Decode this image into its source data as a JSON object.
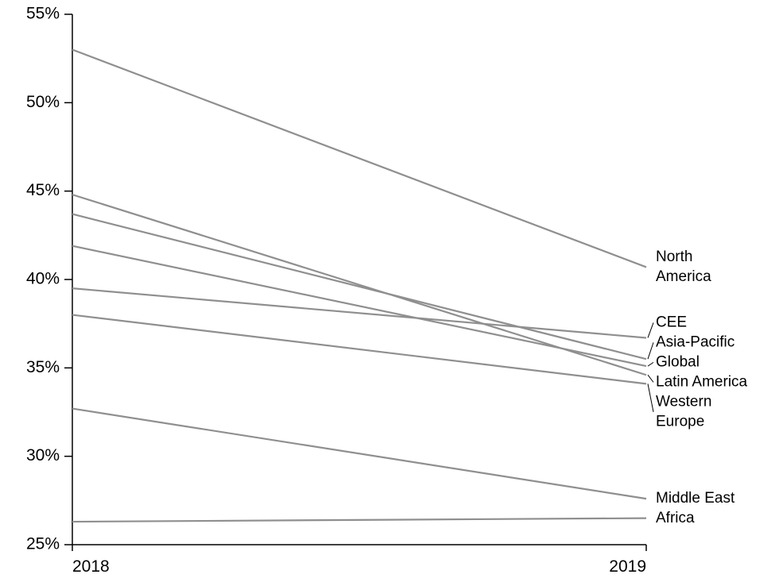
{
  "chart_data": {
    "type": "line",
    "title": "",
    "xlabel": "",
    "ylabel": "",
    "x": [
      "2018",
      "2019"
    ],
    "ylim": [
      25,
      55
    ],
    "yticks": [
      {
        "value": 25,
        "label": "25%"
      },
      {
        "value": 30,
        "label": "30%"
      },
      {
        "value": 35,
        "label": "35%"
      },
      {
        "value": 40,
        "label": "40%"
      },
      {
        "value": 45,
        "label": "45%"
      },
      {
        "value": 50,
        "label": "50%"
      },
      {
        "value": 55,
        "label": "55%"
      }
    ],
    "line_color": "#8f8f8f",
    "grid": false,
    "legend": "direct labels at right",
    "series": [
      {
        "name": "North America",
        "label_lines": [
          "North",
          "America"
        ],
        "values": [
          53.0,
          40.7
        ]
      },
      {
        "name": "CEE",
        "label_lines": [
          "CEE"
        ],
        "values": [
          39.5,
          36.7
        ]
      },
      {
        "name": "Asia-Pacific",
        "label_lines": [
          "Asia-Pacific"
        ],
        "values": [
          43.7,
          35.5
        ]
      },
      {
        "name": "Global",
        "label_lines": [
          "Global"
        ],
        "values": [
          41.9,
          35.1
        ]
      },
      {
        "name": "Latin America",
        "label_lines": [
          "Latin America"
        ],
        "values": [
          44.8,
          34.6
        ]
      },
      {
        "name": "Western Europe",
        "label_lines": [
          "Western",
          "Europe"
        ],
        "values": [
          38.0,
          34.1
        ]
      },
      {
        "name": "Middle East",
        "label_lines": [
          "Middle East"
        ],
        "values": [
          32.7,
          27.6
        ]
      },
      {
        "name": "Africa",
        "label_lines": [
          "Africa"
        ],
        "values": [
          26.3,
          26.5
        ]
      }
    ]
  }
}
